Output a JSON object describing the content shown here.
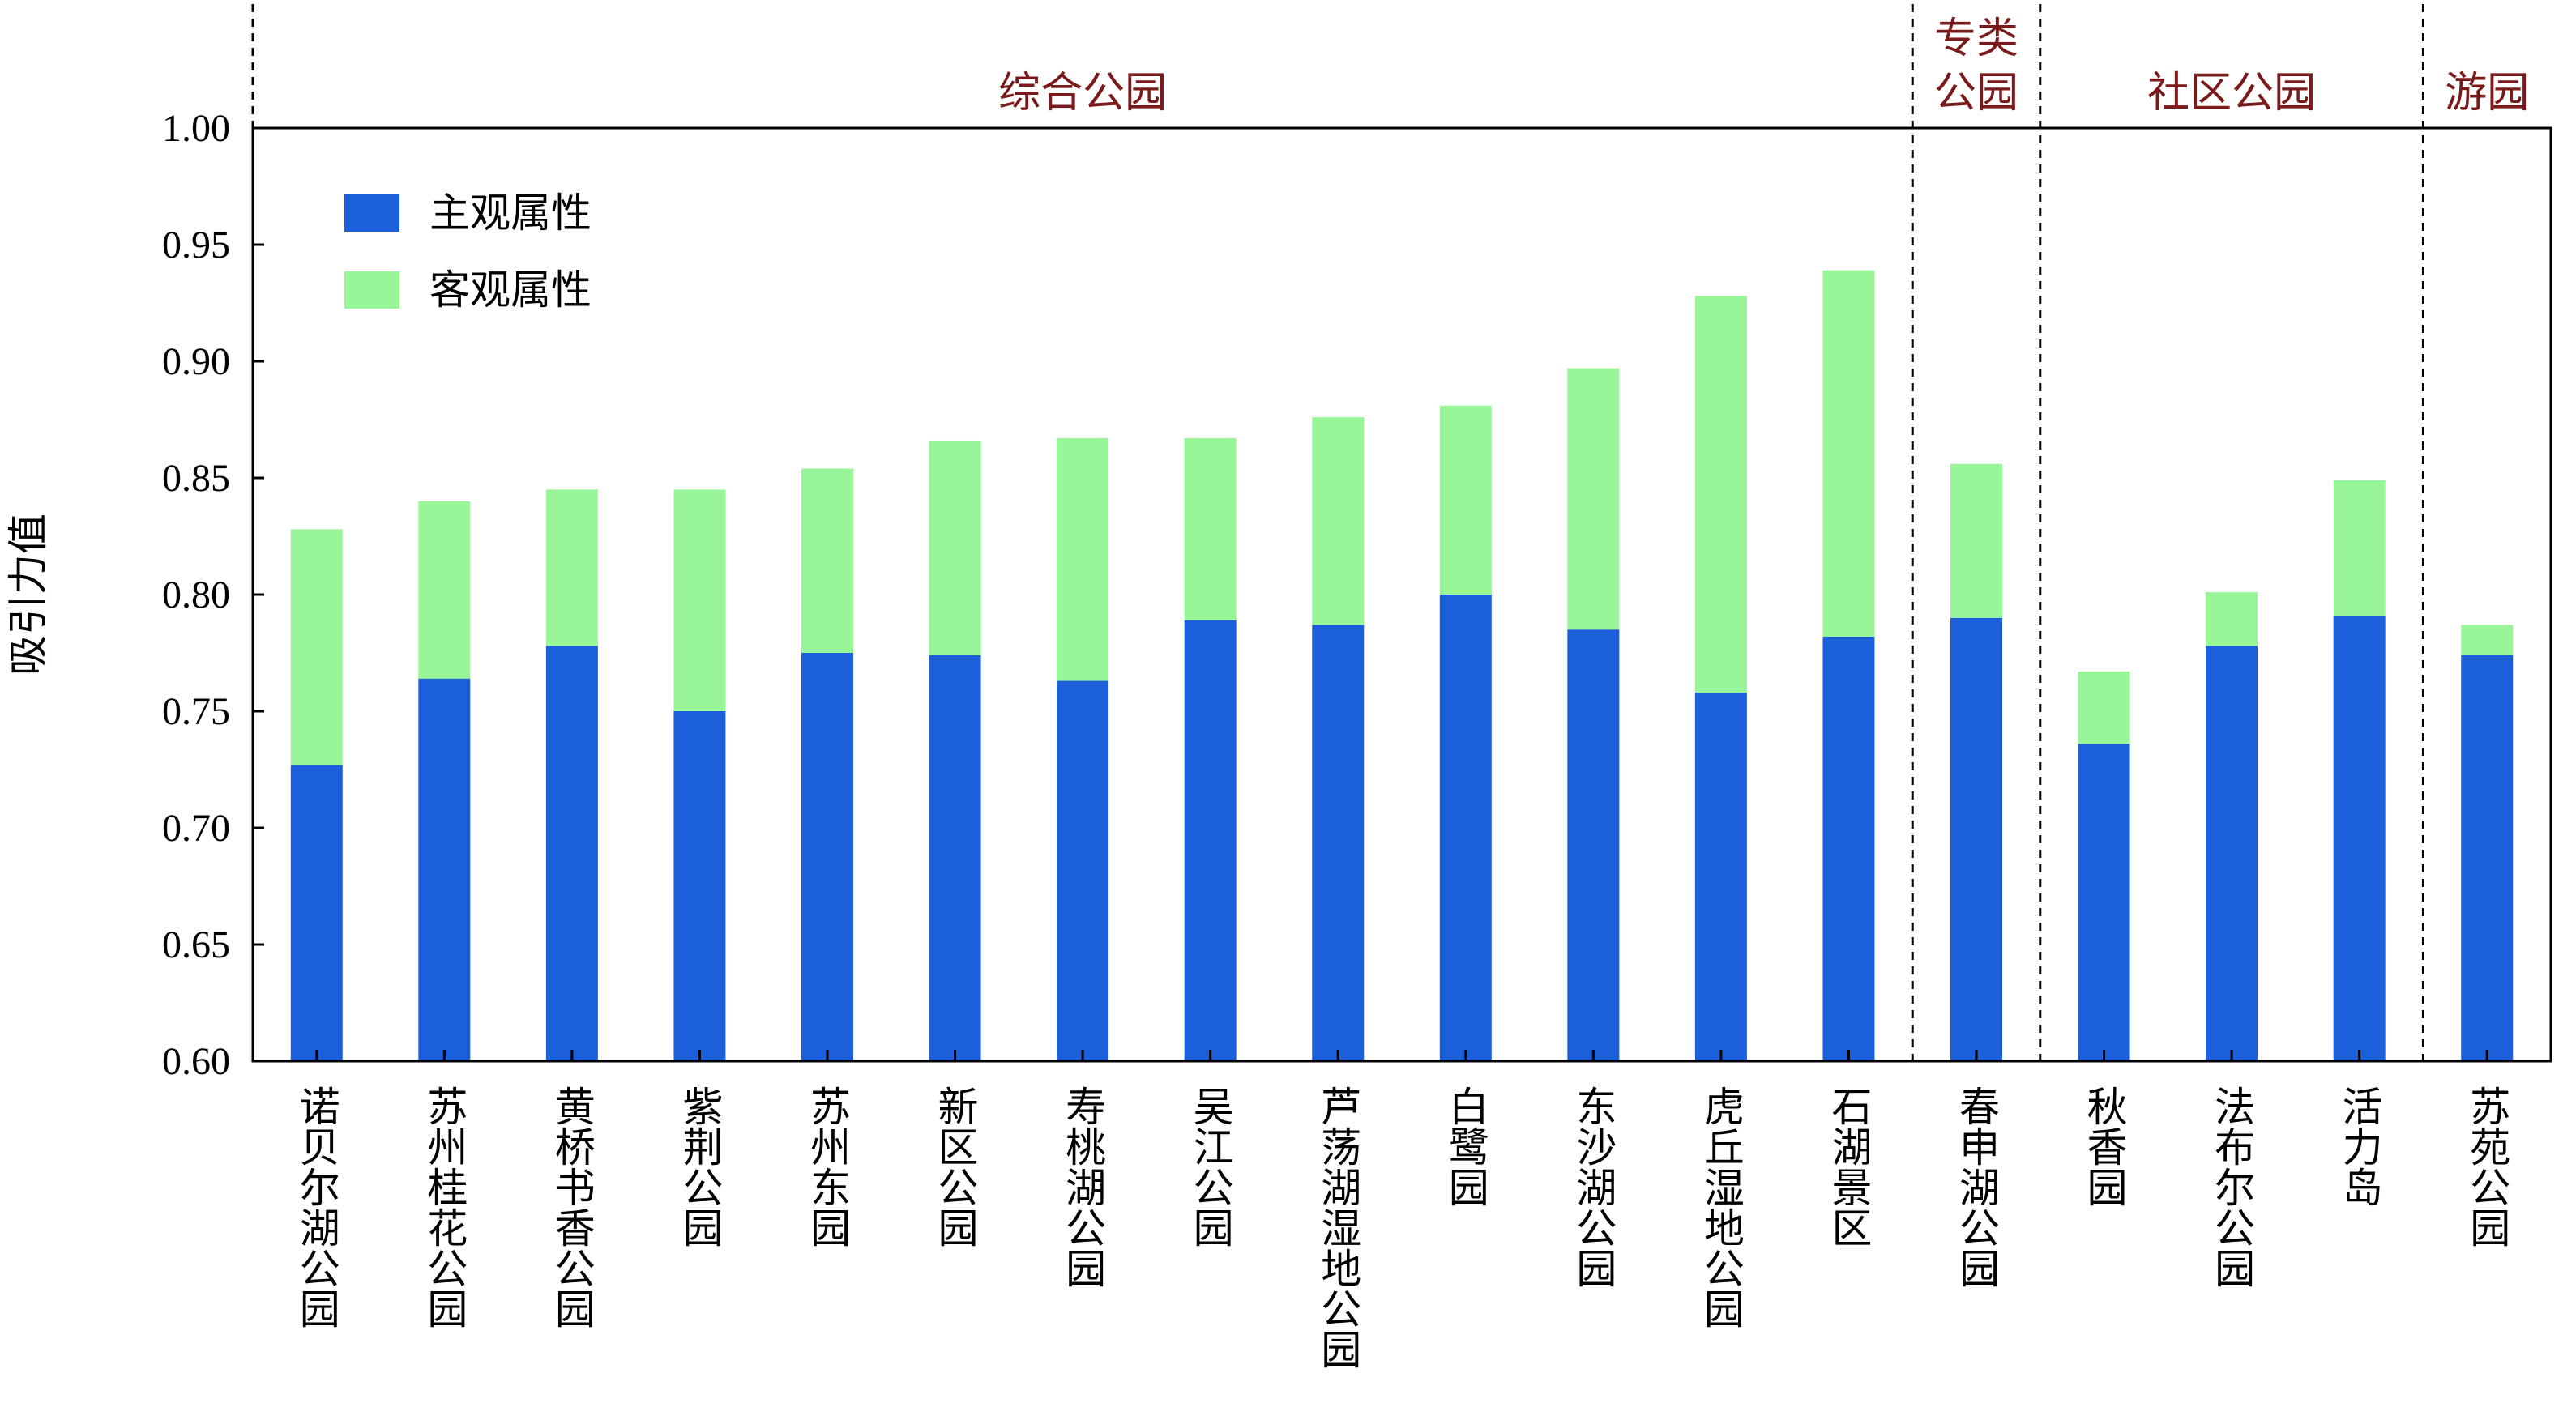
{
  "chart_data": {
    "type": "bar",
    "stacked": true,
    "ylabel": "吸引力值",
    "ylim": [
      0.6,
      1.0
    ],
    "yticks": [
      "0.60",
      "0.65",
      "0.70",
      "0.75",
      "0.80",
      "0.85",
      "0.90",
      "0.95",
      "1.00"
    ],
    "categories": [
      "诺贝尔湖公园",
      "苏州桂花公园",
      "黄桥书香公园",
      "紫荆公园",
      "苏州东园",
      "新区公园",
      "寿桃湖公园",
      "吴江公园",
      "芦荡湖湿地公园",
      "白鹭园",
      "东沙湖公园",
      "虎丘湿地公园",
      "石湖景区",
      "春申湖公园",
      "秋香园",
      "法布尔公园",
      "活力岛",
      "苏苑公园"
    ],
    "series": [
      {
        "name": "主观属性",
        "color": "#1c5fdb",
        "values": [
          0.727,
          0.764,
          0.778,
          0.75,
          0.775,
          0.774,
          0.763,
          0.789,
          0.787,
          0.8,
          0.785,
          0.758,
          0.782,
          0.79,
          0.736,
          0.778,
          0.791,
          0.774
        ]
      },
      {
        "name": "客观属性",
        "color": "#98f598",
        "totals": [
          0.828,
          0.84,
          0.845,
          0.845,
          0.854,
          0.866,
          0.867,
          0.867,
          0.876,
          0.881,
          0.897,
          0.928,
          0.939,
          0.856,
          0.767,
          0.801,
          0.849,
          0.787
        ]
      }
    ],
    "groups": [
      {
        "label": "综合公园",
        "start": 0,
        "end": 12
      },
      {
        "label": "专类公园",
        "start": 13,
        "end": 13
      },
      {
        "label": "社区公园",
        "start": 14,
        "end": 16
      },
      {
        "label": "游园",
        "start": 17,
        "end": 17
      }
    ],
    "legend": "top-left"
  }
}
